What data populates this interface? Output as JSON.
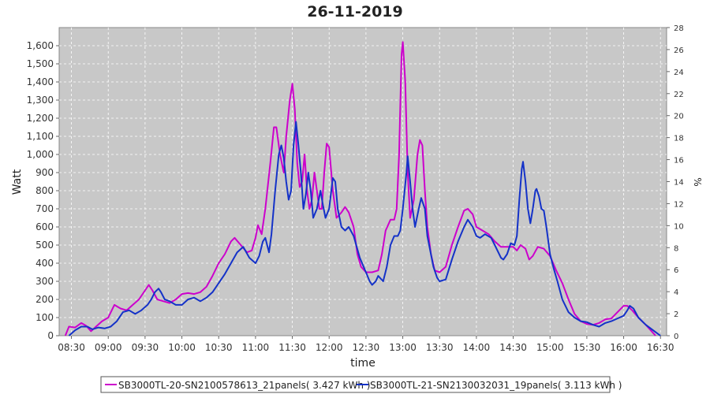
{
  "chart_data": {
    "type": "line",
    "title": "26-11-2019",
    "xlabel": "time",
    "ylabel": "Watt",
    "y2label": "%",
    "ylim": [
      0,
      1700
    ],
    "y2lim": [
      0,
      28
    ],
    "xlim": [
      "08:20",
      "16:35"
    ],
    "x_ticks": [
      "08:30",
      "09:00",
      "09:30",
      "10:00",
      "10:30",
      "11:00",
      "11:30",
      "12:00",
      "12:30",
      "13:00",
      "13:30",
      "14:00",
      "14:30",
      "15:00",
      "15:30",
      "16:00",
      "16:30"
    ],
    "y_ticks": [
      "0",
      "100",
      "200",
      "300",
      "400",
      "500",
      "600",
      "700",
      "800",
      "900",
      "1,000",
      "1,100",
      "1,200",
      "1,300",
      "1,400",
      "1,500",
      "1,600"
    ],
    "y2_ticks": [
      "0",
      "2",
      "4",
      "6",
      "8",
      "10",
      "12",
      "14",
      "16",
      "18",
      "20",
      "22",
      "24",
      "26",
      "28"
    ],
    "grid": true,
    "legend_position": "bottom",
    "series": [
      {
        "name": "SB3000TL-20-SN2100578613_21panels( 3.427 kWh )",
        "color": "#cc00cc",
        "points": [
          [
            "08:25",
            0
          ],
          [
            "08:28",
            50
          ],
          [
            "08:33",
            45
          ],
          [
            "08:38",
            70
          ],
          [
            "08:42",
            55
          ],
          [
            "08:46",
            25
          ],
          [
            "08:50",
            50
          ],
          [
            "08:55",
            80
          ],
          [
            "09:00",
            100
          ],
          [
            "09:05",
            170
          ],
          [
            "09:10",
            150
          ],
          [
            "09:15",
            140
          ],
          [
            "09:20",
            170
          ],
          [
            "09:25",
            200
          ],
          [
            "09:30",
            250
          ],
          [
            "09:33",
            280
          ],
          [
            "09:36",
            250
          ],
          [
            "09:40",
            200
          ],
          [
            "09:45",
            190
          ],
          [
            "09:50",
            180
          ],
          [
            "09:55",
            200
          ],
          [
            "10:00",
            230
          ],
          [
            "10:05",
            235
          ],
          [
            "10:10",
            230
          ],
          [
            "10:15",
            240
          ],
          [
            "10:20",
            270
          ],
          [
            "10:25",
            330
          ],
          [
            "10:30",
            400
          ],
          [
            "10:35",
            450
          ],
          [
            "10:40",
            520
          ],
          [
            "10:43",
            540
          ],
          [
            "10:48",
            500
          ],
          [
            "10:53",
            460
          ],
          [
            "10:57",
            470
          ],
          [
            "11:00",
            540
          ],
          [
            "11:02",
            610
          ],
          [
            "11:05",
            560
          ],
          [
            "11:08",
            700
          ],
          [
            "11:12",
            950
          ],
          [
            "11:15",
            1150
          ],
          [
            "11:17",
            1150
          ],
          [
            "11:20",
            1000
          ],
          [
            "11:23",
            900
          ],
          [
            "11:25",
            1100
          ],
          [
            "11:28",
            1300
          ],
          [
            "11:30",
            1390
          ],
          [
            "11:32",
            1250
          ],
          [
            "11:34",
            950
          ],
          [
            "11:36",
            820
          ],
          [
            "11:38",
            850
          ],
          [
            "11:40",
            1000
          ],
          [
            "11:42",
            800
          ],
          [
            "11:44",
            700
          ],
          [
            "11:46",
            750
          ],
          [
            "11:48",
            900
          ],
          [
            "11:50",
            800
          ],
          [
            "11:52",
            700
          ],
          [
            "11:54",
            700
          ],
          [
            "11:56",
            900
          ],
          [
            "11:58",
            1060
          ],
          [
            "12:00",
            1040
          ],
          [
            "12:03",
            800
          ],
          [
            "12:06",
            650
          ],
          [
            "12:10",
            680
          ],
          [
            "12:13",
            710
          ],
          [
            "12:16",
            680
          ],
          [
            "12:20",
            600
          ],
          [
            "12:23",
            450
          ],
          [
            "12:26",
            380
          ],
          [
            "12:30",
            350
          ],
          [
            "12:35",
            350
          ],
          [
            "12:40",
            360
          ],
          [
            "12:43",
            450
          ],
          [
            "12:46",
            580
          ],
          [
            "12:50",
            640
          ],
          [
            "12:53",
            640
          ],
          [
            "12:55",
            700
          ],
          [
            "12:57",
            1000
          ],
          [
            "12:59",
            1550
          ],
          [
            "13:00",
            1620
          ],
          [
            "13:02",
            1400
          ],
          [
            "13:04",
            900
          ],
          [
            "13:06",
            650
          ],
          [
            "13:09",
            750
          ],
          [
            "13:12",
            1000
          ],
          [
            "13:14",
            1080
          ],
          [
            "13:16",
            1050
          ],
          [
            "13:18",
            800
          ],
          [
            "13:20",
            600
          ],
          [
            "13:23",
            450
          ],
          [
            "13:26",
            360
          ],
          [
            "13:30",
            350
          ],
          [
            "13:35",
            380
          ],
          [
            "13:40",
            500
          ],
          [
            "13:45",
            600
          ],
          [
            "13:50",
            690
          ],
          [
            "13:53",
            700
          ],
          [
            "13:57",
            670
          ],
          [
            "14:00",
            600
          ],
          [
            "14:05",
            580
          ],
          [
            "14:10",
            560
          ],
          [
            "14:15",
            520
          ],
          [
            "14:20",
            490
          ],
          [
            "14:25",
            490
          ],
          [
            "14:30",
            490
          ],
          [
            "14:33",
            470
          ],
          [
            "14:36",
            500
          ],
          [
            "14:40",
            480
          ],
          [
            "14:43",
            420
          ],
          [
            "14:46",
            440
          ],
          [
            "14:50",
            490
          ],
          [
            "14:55",
            480
          ],
          [
            "15:00",
            440
          ],
          [
            "15:05",
            360
          ],
          [
            "15:10",
            290
          ],
          [
            "15:15",
            200
          ],
          [
            "15:20",
            120
          ],
          [
            "15:25",
            80
          ],
          [
            "15:30",
            65
          ],
          [
            "15:35",
            60
          ],
          [
            "15:40",
            70
          ],
          [
            "15:45",
            90
          ],
          [
            "15:50",
            95
          ],
          [
            "15:55",
            130
          ],
          [
            "16:00",
            165
          ],
          [
            "16:03",
            165
          ],
          [
            "16:07",
            140
          ],
          [
            "16:12",
            100
          ],
          [
            "16:18",
            60
          ],
          [
            "16:22",
            30
          ],
          [
            "16:26",
            0
          ]
        ]
      },
      {
        "name": "SB3000TL-21-SN2130032031_19panels( 3.113 kWh )",
        "color": "#1432c8",
        "points": [
          [
            "08:28",
            0
          ],
          [
            "08:33",
            30
          ],
          [
            "08:38",
            50
          ],
          [
            "08:43",
            50
          ],
          [
            "08:47",
            35
          ],
          [
            "08:52",
            45
          ],
          [
            "08:57",
            40
          ],
          [
            "09:02",
            50
          ],
          [
            "09:07",
            80
          ],
          [
            "09:12",
            130
          ],
          [
            "09:17",
            140
          ],
          [
            "09:22",
            120
          ],
          [
            "09:27",
            140
          ],
          [
            "09:32",
            170
          ],
          [
            "09:35",
            200
          ],
          [
            "09:38",
            240
          ],
          [
            "09:41",
            260
          ],
          [
            "09:43",
            240
          ],
          [
            "09:46",
            200
          ],
          [
            "09:50",
            190
          ],
          [
            "09:55",
            170
          ],
          [
            "10:00",
            170
          ],
          [
            "10:05",
            200
          ],
          [
            "10:10",
            210
          ],
          [
            "10:15",
            190
          ],
          [
            "10:20",
            210
          ],
          [
            "10:25",
            240
          ],
          [
            "10:30",
            290
          ],
          [
            "10:35",
            340
          ],
          [
            "10:40",
            400
          ],
          [
            "10:45",
            460
          ],
          [
            "10:50",
            490
          ],
          [
            "10:55",
            430
          ],
          [
            "11:00",
            400
          ],
          [
            "11:03",
            440
          ],
          [
            "11:06",
            520
          ],
          [
            "11:08",
            540
          ],
          [
            "11:11",
            460
          ],
          [
            "11:13",
            560
          ],
          [
            "11:16",
            800
          ],
          [
            "11:19",
            1000
          ],
          [
            "11:21",
            1050
          ],
          [
            "11:23",
            980
          ],
          [
            "11:25",
            850
          ],
          [
            "11:27",
            750
          ],
          [
            "11:29",
            800
          ],
          [
            "11:31",
            1050
          ],
          [
            "11:33",
            1180
          ],
          [
            "11:35",
            1050
          ],
          [
            "11:37",
            900
          ],
          [
            "11:39",
            700
          ],
          [
            "11:41",
            780
          ],
          [
            "11:43",
            900
          ],
          [
            "11:45",
            800
          ],
          [
            "11:47",
            650
          ],
          [
            "11:50",
            700
          ],
          [
            "11:53",
            800
          ],
          [
            "11:55",
            720
          ],
          [
            "11:57",
            650
          ],
          [
            "12:00",
            700
          ],
          [
            "12:03",
            870
          ],
          [
            "12:05",
            850
          ],
          [
            "12:07",
            700
          ],
          [
            "12:10",
            600
          ],
          [
            "12:13",
            580
          ],
          [
            "12:16",
            600
          ],
          [
            "12:20",
            550
          ],
          [
            "12:25",
            430
          ],
          [
            "12:30",
            350
          ],
          [
            "12:33",
            300
          ],
          [
            "12:35",
            280
          ],
          [
            "12:38",
            300
          ],
          [
            "12:40",
            330
          ],
          [
            "12:44",
            300
          ],
          [
            "12:47",
            380
          ],
          [
            "12:50",
            500
          ],
          [
            "12:53",
            550
          ],
          [
            "12:56",
            550
          ],
          [
            "12:58",
            580
          ],
          [
            "13:00",
            700
          ],
          [
            "13:03",
            900
          ],
          [
            "13:04",
            990
          ],
          [
            "13:06",
            850
          ],
          [
            "13:08",
            700
          ],
          [
            "13:10",
            600
          ],
          [
            "13:13",
            700
          ],
          [
            "13:15",
            760
          ],
          [
            "13:18",
            700
          ],
          [
            "13:20",
            550
          ],
          [
            "13:25",
            380
          ],
          [
            "13:28",
            320
          ],
          [
            "13:30",
            300
          ],
          [
            "13:35",
            310
          ],
          [
            "13:40",
            420
          ],
          [
            "13:45",
            520
          ],
          [
            "13:50",
            600
          ],
          [
            "13:53",
            640
          ],
          [
            "13:57",
            600
          ],
          [
            "14:00",
            550
          ],
          [
            "14:03",
            540
          ],
          [
            "14:07",
            560
          ],
          [
            "14:12",
            540
          ],
          [
            "14:15",
            500
          ],
          [
            "14:20",
            430
          ],
          [
            "14:22",
            420
          ],
          [
            "14:25",
            450
          ],
          [
            "14:28",
            510
          ],
          [
            "14:31",
            500
          ],
          [
            "14:33",
            550
          ],
          [
            "14:35",
            750
          ],
          [
            "14:37",
            920
          ],
          [
            "14:38",
            960
          ],
          [
            "14:40",
            850
          ],
          [
            "14:42",
            700
          ],
          [
            "14:44",
            620
          ],
          [
            "14:46",
            700
          ],
          [
            "14:48",
            800
          ],
          [
            "14:49",
            810
          ],
          [
            "14:51",
            770
          ],
          [
            "14:53",
            700
          ],
          [
            "14:55",
            690
          ],
          [
            "14:57",
            600
          ],
          [
            "15:00",
            450
          ],
          [
            "15:03",
            370
          ],
          [
            "15:06",
            300
          ],
          [
            "15:10",
            200
          ],
          [
            "15:15",
            130
          ],
          [
            "15:20",
            100
          ],
          [
            "15:25",
            80
          ],
          [
            "15:30",
            75
          ],
          [
            "15:35",
            60
          ],
          [
            "15:40",
            50
          ],
          [
            "15:45",
            70
          ],
          [
            "15:50",
            80
          ],
          [
            "15:55",
            95
          ],
          [
            "16:00",
            110
          ],
          [
            "16:03",
            140
          ],
          [
            "16:05",
            165
          ],
          [
            "16:08",
            150
          ],
          [
            "16:12",
            100
          ],
          [
            "16:18",
            60
          ],
          [
            "16:22",
            40
          ],
          [
            "16:26",
            20
          ],
          [
            "16:30",
            0
          ]
        ]
      }
    ]
  }
}
